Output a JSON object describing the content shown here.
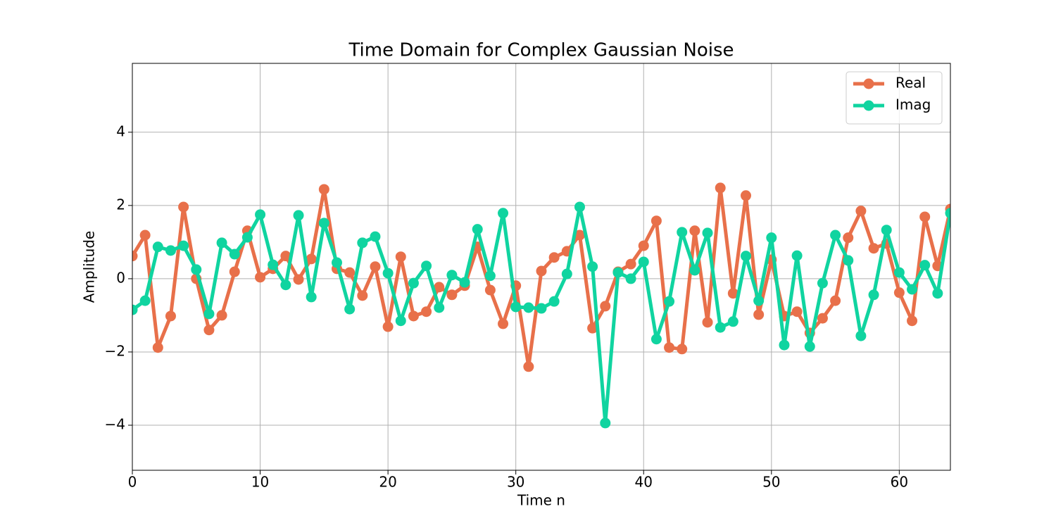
{
  "chart_data": {
    "type": "line",
    "title": "Time Domain for Complex Gaussian Noise",
    "xlabel": "Time n",
    "ylabel": "Amplitude",
    "x": [
      0,
      1,
      2,
      3,
      4,
      5,
      6,
      7,
      8,
      9,
      10,
      11,
      12,
      13,
      14,
      15,
      16,
      17,
      18,
      19,
      20,
      21,
      22,
      23,
      24,
      25,
      26,
      27,
      28,
      29,
      30,
      31,
      32,
      33,
      34,
      35,
      36,
      37,
      38,
      39,
      40,
      41,
      42,
      43,
      44,
      45,
      46,
      47,
      48,
      49,
      50,
      51,
      52,
      53,
      54,
      55,
      56,
      57,
      58,
      59,
      60,
      61,
      62,
      63,
      64
    ],
    "series": [
      {
        "name": "Real",
        "color": "#e8704a",
        "values": [
          0.62,
          1.19,
          -1.88,
          -1.02,
          1.96,
          0.0,
          -1.4,
          -1.0,
          0.19,
          1.31,
          0.04,
          0.27,
          0.62,
          -0.02,
          0.54,
          2.44,
          0.27,
          0.17,
          -0.46,
          0.33,
          -1.31,
          0.6,
          -1.02,
          -0.9,
          -0.23,
          -0.44,
          -0.19,
          0.87,
          -0.31,
          -1.23,
          -0.19,
          -2.4,
          0.21,
          0.58,
          0.75,
          1.19,
          -1.35,
          -0.75,
          0.19,
          0.4,
          0.9,
          1.58,
          -1.88,
          -1.92,
          1.31,
          -1.19,
          2.48,
          -0.4,
          2.27,
          -0.98,
          0.52,
          -1.02,
          -0.9,
          -1.48,
          -1.08,
          -0.6,
          1.12,
          1.85,
          0.83,
          0.96,
          -0.38,
          -1.15,
          1.69,
          0.35,
          1.9
        ]
      },
      {
        "name": "Imag",
        "color": "#10d4a0",
        "values": [
          -0.85,
          -0.6,
          0.87,
          0.77,
          0.9,
          0.25,
          -0.96,
          0.98,
          0.67,
          1.13,
          1.75,
          0.38,
          -0.17,
          1.73,
          -0.5,
          1.52,
          0.44,
          -0.83,
          0.98,
          1.15,
          0.15,
          -1.15,
          -0.12,
          0.35,
          -0.79,
          0.1,
          -0.1,
          1.35,
          0.08,
          1.79,
          -0.77,
          -0.79,
          -0.81,
          -0.62,
          0.13,
          1.96,
          0.33,
          -3.94,
          0.17,
          0.0,
          0.46,
          -1.65,
          -0.62,
          1.27,
          0.23,
          1.25,
          -1.33,
          -1.17,
          0.62,
          -0.6,
          1.12,
          -1.81,
          0.63,
          -1.85,
          -0.12,
          1.19,
          0.5,
          -1.56,
          -0.44,
          1.33,
          0.17,
          -0.29,
          0.37,
          -0.4,
          1.79
        ]
      }
    ],
    "xlim": [
      0,
      64
    ],
    "xticks": [
      0,
      10,
      20,
      30,
      40,
      50,
      60
    ],
    "ylim": [
      -5.23,
      5.88
    ],
    "yticks": [
      {
        "value": -4,
        "label": "−4"
      },
      {
        "value": -2,
        "label": "−2"
      },
      0,
      2,
      4
    ],
    "grid": true,
    "legend": "upper right"
  }
}
